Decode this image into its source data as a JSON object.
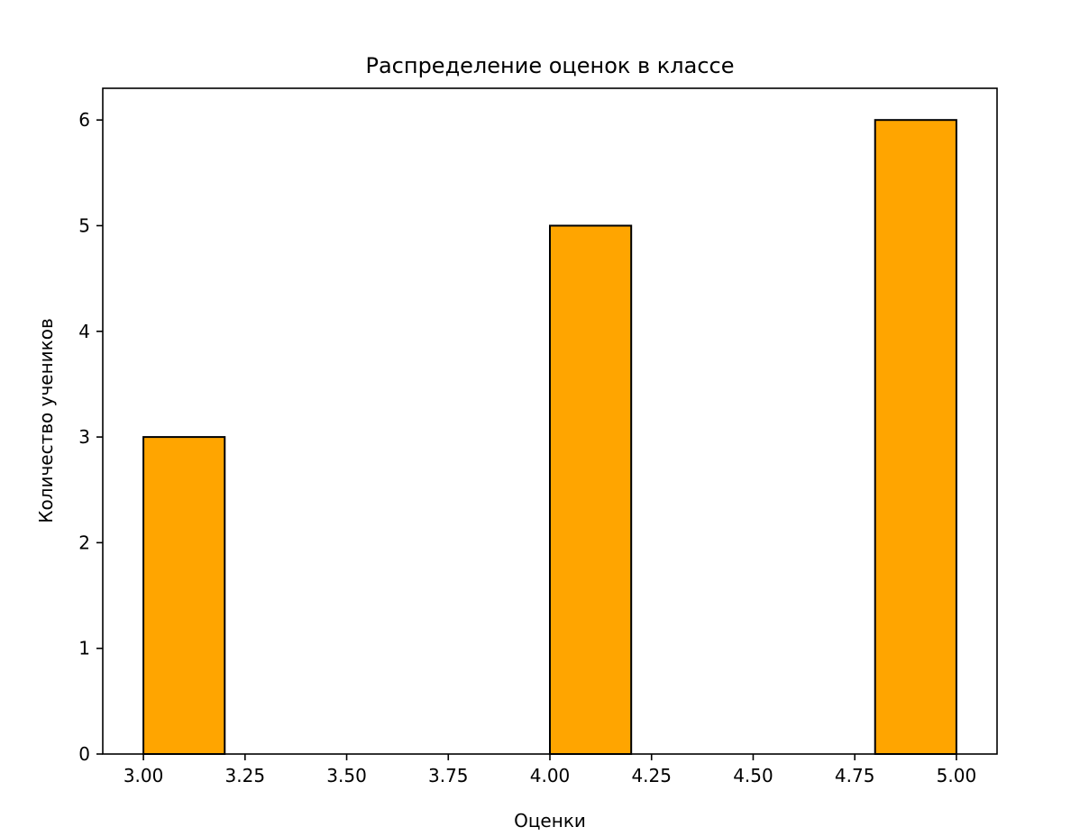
{
  "chart_data": {
    "type": "bar",
    "title": "Распределение оценок в классе",
    "xlabel": "Оценки",
    "ylabel": "Количество учеников",
    "xlim": [
      2.9,
      5.1
    ],
    "ylim": [
      0,
      6.3
    ],
    "grid": false,
    "bar_color": "#ffa500",
    "edge_color": "#000000",
    "bins": [
      {
        "x0": 3.0,
        "x1": 3.2,
        "count": 3
      },
      {
        "x0": 3.2,
        "x1": 3.4,
        "count": 0
      },
      {
        "x0": 3.4,
        "x1": 3.6,
        "count": 0
      },
      {
        "x0": 3.6,
        "x1": 3.8,
        "count": 0
      },
      {
        "x0": 3.8,
        "x1": 4.0,
        "count": 0
      },
      {
        "x0": 4.0,
        "x1": 4.2,
        "count": 5
      },
      {
        "x0": 4.2,
        "x1": 4.4,
        "count": 0
      },
      {
        "x0": 4.4,
        "x1": 4.6,
        "count": 0
      },
      {
        "x0": 4.6,
        "x1": 4.8,
        "count": 0
      },
      {
        "x0": 4.8,
        "x1": 5.0,
        "count": 6
      }
    ],
    "xticks": [
      "3.00",
      "3.25",
      "3.50",
      "3.75",
      "4.00",
      "4.25",
      "4.50",
      "4.75",
      "5.00"
    ],
    "yticks": [
      "0",
      "1",
      "2",
      "3",
      "4",
      "5",
      "6"
    ]
  }
}
